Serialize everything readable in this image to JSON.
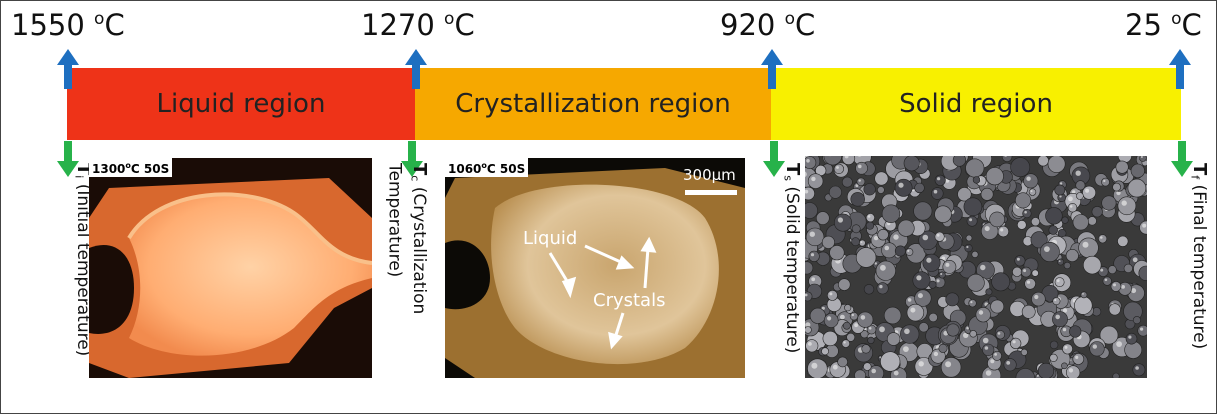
{
  "temperatures": {
    "t1": {
      "value": "1550",
      "unit": "oC"
    },
    "t2": {
      "value": "1270",
      "unit": "oC"
    },
    "t3": {
      "value": "920",
      "unit": "oC"
    },
    "t4": {
      "value": "25",
      "unit": "oC"
    }
  },
  "regions": {
    "liquid": "Liquid region",
    "crystallization": "Crystallization region",
    "solid": "Solid region"
  },
  "colors": {
    "liquid": "#ee3318",
    "crystallization": "#f6a800",
    "solid": "#f8f000",
    "up_arrow": "#1e6fc0",
    "down_arrow": "#27b24a"
  },
  "points": {
    "ti": {
      "symbol": "T",
      "sub": "i",
      "text": " (Initial temperature)"
    },
    "tc": {
      "symbol": "T",
      "sub": "c",
      "text": " (Crystallization",
      "text2": "Temperature)"
    },
    "ts": {
      "symbol": "T",
      "sub": "s",
      "text": " (Solid temperature)"
    },
    "tf": {
      "symbol": "T",
      "sub": "f",
      "text": " (Final temperature)"
    }
  },
  "photos": {
    "liquid_caption": "1300oC 50S",
    "cryst_caption": "1060oC 50S",
    "scale_bar": "300μm",
    "label_liquid": "Liquid",
    "label_crystals": "Crystals"
  }
}
